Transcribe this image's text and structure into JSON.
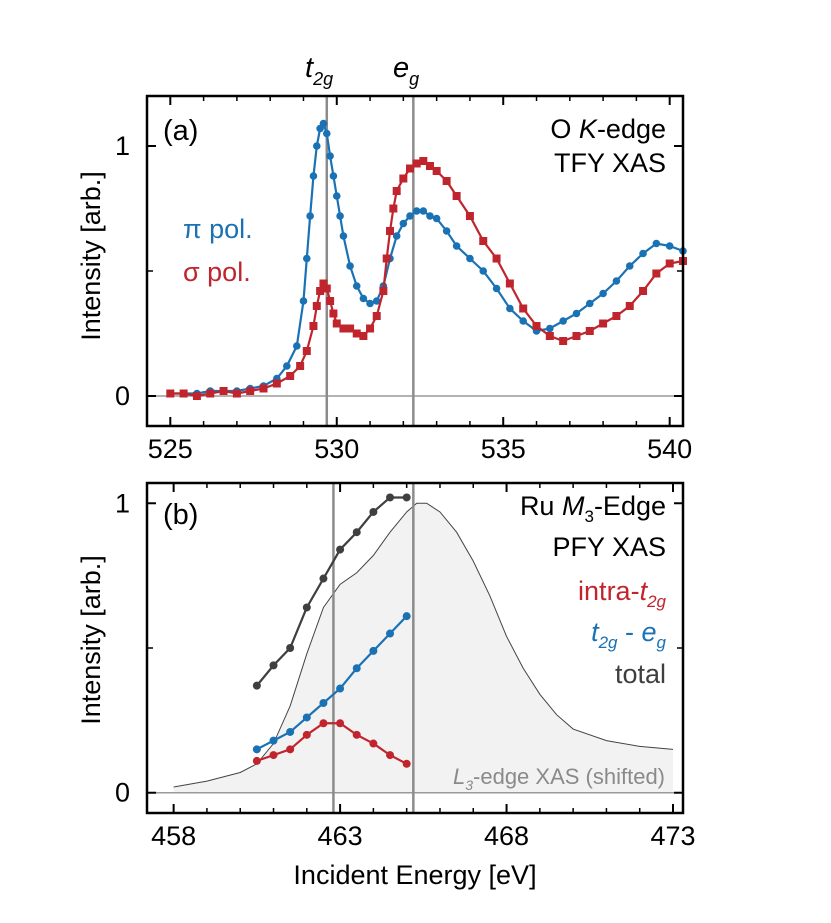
{
  "chart_data": [
    {
      "panel_label": "(a)",
      "type": "line",
      "ylabel": "Intensity [arb.]",
      "xlim": [
        524.3,
        540.4
      ],
      "ylim": [
        -0.12,
        1.2
      ],
      "x_ticks": [
        525,
        530,
        535,
        540
      ],
      "y_ticks": [
        0,
        1
      ],
      "annotations": [
        "O",
        "K",
        "-edge",
        "TFY XAS"
      ],
      "vlines": [
        {
          "x": 529.7,
          "label_main": "t",
          "label_sub": "2g"
        },
        {
          "x": 532.3,
          "label_main": "e",
          "label_sub": "g"
        }
      ],
      "series": [
        {
          "name": "π pol.",
          "color": "#1a72b5",
          "marker": "circle",
          "x": [
            525.0,
            525.4,
            525.8,
            526.2,
            526.6,
            527.0,
            527.4,
            527.8,
            528.2,
            528.5,
            528.8,
            529.0,
            529.1,
            529.2,
            529.3,
            529.4,
            529.5,
            529.6,
            529.7,
            529.8,
            529.9,
            530.0,
            530.1,
            530.2,
            530.4,
            530.6,
            530.8,
            531.0,
            531.2,
            531.4,
            531.6,
            531.8,
            532.0,
            532.2,
            532.4,
            532.6,
            532.8,
            533.0,
            533.3,
            533.6,
            534.0,
            534.4,
            534.8,
            535.2,
            535.6,
            536.0,
            536.4,
            536.8,
            537.2,
            537.6,
            538.0,
            538.4,
            538.8,
            539.2,
            539.6,
            540.0,
            540.4
          ],
          "y": [
            0.01,
            0.01,
            0.01,
            0.02,
            0.02,
            0.02,
            0.03,
            0.04,
            0.07,
            0.12,
            0.2,
            0.38,
            0.55,
            0.72,
            0.88,
            1.0,
            1.07,
            1.09,
            1.05,
            0.96,
            0.88,
            0.8,
            0.72,
            0.64,
            0.52,
            0.44,
            0.39,
            0.37,
            0.38,
            0.44,
            0.55,
            0.64,
            0.69,
            0.72,
            0.74,
            0.74,
            0.72,
            0.71,
            0.66,
            0.6,
            0.55,
            0.5,
            0.43,
            0.35,
            0.3,
            0.26,
            0.27,
            0.3,
            0.33,
            0.37,
            0.41,
            0.46,
            0.52,
            0.57,
            0.61,
            0.6,
            0.58
          ]
        },
        {
          "name": "σ pol.",
          "color": "#c0252e",
          "marker": "square",
          "x": [
            525.0,
            525.4,
            525.8,
            526.2,
            526.6,
            527.0,
            527.4,
            527.8,
            528.2,
            528.6,
            528.9,
            529.1,
            529.3,
            529.4,
            529.5,
            529.6,
            529.7,
            529.8,
            529.9,
            530.0,
            530.2,
            530.4,
            530.6,
            530.8,
            531.0,
            531.2,
            531.4,
            531.5,
            531.6,
            531.7,
            531.8,
            532.0,
            532.2,
            532.4,
            532.6,
            532.8,
            533.0,
            533.3,
            533.6,
            534.0,
            534.4,
            534.8,
            535.2,
            535.6,
            536.0,
            536.4,
            536.8,
            537.2,
            537.6,
            538.0,
            538.4,
            538.8,
            539.2,
            539.6,
            540.0,
            540.4
          ],
          "y": [
            0.01,
            0.01,
            0.0,
            0.01,
            0.02,
            0.01,
            0.02,
            0.03,
            0.05,
            0.08,
            0.12,
            0.18,
            0.28,
            0.36,
            0.42,
            0.45,
            0.43,
            0.38,
            0.33,
            0.29,
            0.27,
            0.27,
            0.25,
            0.24,
            0.27,
            0.32,
            0.42,
            0.55,
            0.66,
            0.75,
            0.82,
            0.87,
            0.91,
            0.93,
            0.94,
            0.92,
            0.9,
            0.86,
            0.8,
            0.72,
            0.62,
            0.55,
            0.45,
            0.35,
            0.28,
            0.24,
            0.22,
            0.24,
            0.26,
            0.29,
            0.32,
            0.36,
            0.42,
            0.49,
            0.53,
            0.54
          ]
        }
      ]
    },
    {
      "panel_label": "(b)",
      "type": "line",
      "xlabel": "Incident Energy [eV]",
      "ylabel": "Intensity [arb.]",
      "xlim": [
        457.2,
        473.3
      ],
      "ylim": [
        -0.07,
        1.07
      ],
      "x_ticks": [
        458,
        463,
        468,
        473
      ],
      "y_ticks": [
        0,
        1
      ],
      "annotations": [
        "Ru",
        "M",
        "3",
        "-Edge",
        "PFY XAS"
      ],
      "vlines": [
        {
          "x": 462.8
        },
        {
          "x": 465.2
        }
      ],
      "background": {
        "label_main": "L",
        "label_sub": "3",
        "label_rest": "-edge XAS (shifted)",
        "x": [
          458.0,
          459.0,
          460.0,
          460.5,
          461.0,
          461.5,
          462.0,
          462.5,
          463.0,
          463.5,
          464.0,
          464.5,
          465.0,
          465.3,
          465.6,
          466.0,
          466.5,
          467.0,
          467.5,
          468.0,
          468.5,
          469.0,
          469.5,
          470.0,
          471.0,
          472.0,
          473.0
        ],
        "y": [
          0.02,
          0.04,
          0.07,
          0.1,
          0.17,
          0.3,
          0.48,
          0.64,
          0.72,
          0.76,
          0.82,
          0.9,
          0.97,
          1.0,
          1.0,
          0.97,
          0.9,
          0.8,
          0.68,
          0.54,
          0.43,
          0.34,
          0.27,
          0.22,
          0.18,
          0.16,
          0.15
        ]
      },
      "series": [
        {
          "name": "total",
          "color": "#3f3f3f",
          "x": [
            460.5,
            461.0,
            461.5,
            462.0,
            462.5,
            463.0,
            463.5,
            464.0,
            464.5,
            465.0
          ],
          "y": [
            0.37,
            0.44,
            0.5,
            0.64,
            0.74,
            0.84,
            0.9,
            0.97,
            1.02,
            1.02
          ]
        },
        {
          "name": "t2g - eg",
          "color": "#1a72b5",
          "legend_parts": [
            {
              "t": "t",
              "s": "2g"
            },
            {
              "t": " - "
            },
            {
              "t": "e",
              "s": "g"
            }
          ],
          "x": [
            460.5,
            461.0,
            461.5,
            462.0,
            462.5,
            463.0,
            463.5,
            464.0,
            464.5,
            465.0
          ],
          "y": [
            0.15,
            0.18,
            0.21,
            0.26,
            0.31,
            0.36,
            0.43,
            0.49,
            0.55,
            0.61
          ]
        },
        {
          "name": "intra-t2g",
          "color": "#c0252e",
          "legend_parts": [
            {
              "t": "intra-"
            },
            {
              "t": "t",
              "s": "2g"
            }
          ],
          "x": [
            460.5,
            461.0,
            461.5,
            462.0,
            462.5,
            463.0,
            463.5,
            464.0,
            464.5,
            465.0
          ],
          "y": [
            0.11,
            0.13,
            0.15,
            0.2,
            0.24,
            0.24,
            0.2,
            0.17,
            0.13,
            0.1
          ]
        }
      ]
    }
  ]
}
